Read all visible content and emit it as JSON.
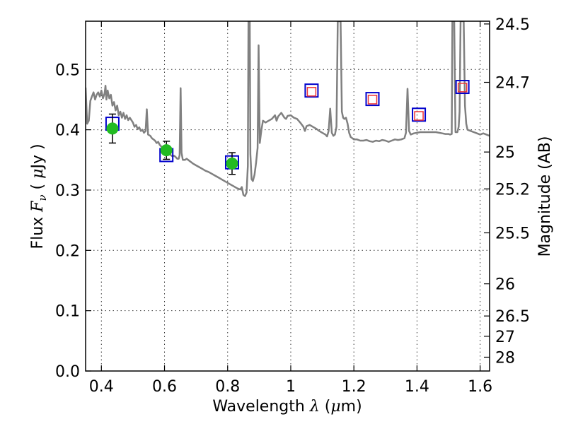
{
  "chart_data": {
    "type": "scatter",
    "title": "",
    "xlabel": {
      "prefix": "Wavelength  ",
      "symbol": "λ",
      "open": " (",
      "unit_symbol": "μ",
      "unit": "m)"
    },
    "ylabel": {
      "prefix": "Flux  ",
      "symbol": "F",
      "subscript": "ν",
      "unit_prefix": "  ( ",
      "unit_symbol": "μ",
      "unit": "Jy )"
    },
    "y2label": "Magnitude (AB)",
    "xlim": [
      0.35,
      1.63
    ],
    "ylim": [
      0.0,
      0.58
    ],
    "grid": true,
    "x_ticks": [
      {
        "value": 0.4,
        "label": "0.4"
      },
      {
        "value": 0.6,
        "label": "0.6"
      },
      {
        "value": 0.8,
        "label": "0.8"
      },
      {
        "value": 1.0,
        "label": "1"
      },
      {
        "value": 1.2,
        "label": "1.2"
      },
      {
        "value": 1.4,
        "label": "1.4"
      },
      {
        "value": 1.6,
        "label": "1.6"
      }
    ],
    "y_ticks": [
      {
        "value": 0.0,
        "label": "0.0"
      },
      {
        "value": 0.1,
        "label": "0.1"
      },
      {
        "value": 0.2,
        "label": "0.2"
      },
      {
        "value": 0.3,
        "label": "0.3"
      },
      {
        "value": 0.4,
        "label": "0.4"
      },
      {
        "value": 0.5,
        "label": "0.5"
      }
    ],
    "y2_ticks": [
      {
        "mag": 24.5,
        "label": "24.5"
      },
      {
        "mag": 24.7,
        "label": "24.7"
      },
      {
        "mag": 25,
        "label": "25"
      },
      {
        "mag": 25.2,
        "label": "25.2"
      },
      {
        "mag": 25.5,
        "label": "25.5"
      },
      {
        "mag": 26,
        "label": "26"
      },
      {
        "mag": 26.5,
        "label": "26.5"
      },
      {
        "mag": 27,
        "label": "27"
      },
      {
        "mag": 28,
        "label": "28"
      }
    ],
    "model_spectrum": {
      "color": "#808080",
      "points": [
        [
          0.35,
          0.47
        ],
        [
          0.355,
          0.41
        ],
        [
          0.36,
          0.415
        ],
        [
          0.365,
          0.448
        ],
        [
          0.37,
          0.455
        ],
        [
          0.375,
          0.462
        ],
        [
          0.38,
          0.45
        ],
        [
          0.385,
          0.458
        ],
        [
          0.39,
          0.462
        ],
        [
          0.395,
          0.455
        ],
        [
          0.4,
          0.465
        ],
        [
          0.405,
          0.452
        ],
        [
          0.41,
          0.46
        ],
        [
          0.413,
          0.473
        ],
        [
          0.416,
          0.45
        ],
        [
          0.42,
          0.465
        ],
        [
          0.425,
          0.452
        ],
        [
          0.43,
          0.458
        ],
        [
          0.435,
          0.44
        ],
        [
          0.44,
          0.446
        ],
        [
          0.445,
          0.432
        ],
        [
          0.45,
          0.44
        ],
        [
          0.455,
          0.424
        ],
        [
          0.46,
          0.43
        ],
        [
          0.465,
          0.42
        ],
        [
          0.47,
          0.428
        ],
        [
          0.475,
          0.418
        ],
        [
          0.48,
          0.424
        ],
        [
          0.485,
          0.416
        ],
        [
          0.49,
          0.42
        ],
        [
          0.5,
          0.412
        ],
        [
          0.505,
          0.405
        ],
        [
          0.51,
          0.408
        ],
        [
          0.515,
          0.401
        ],
        [
          0.52,
          0.404
        ],
        [
          0.525,
          0.398
        ],
        [
          0.53,
          0.4
        ],
        [
          0.535,
          0.395
        ],
        [
          0.54,
          0.398
        ],
        [
          0.544,
          0.434
        ],
        [
          0.548,
          0.392
        ],
        [
          0.555,
          0.39
        ],
        [
          0.56,
          0.386
        ],
        [
          0.565,
          0.384
        ],
        [
          0.57,
          0.382
        ],
        [
          0.575,
          0.378
        ],
        [
          0.58,
          0.38
        ],
        [
          0.585,
          0.375
        ],
        [
          0.59,
          0.372
        ],
        [
          0.595,
          0.37
        ],
        [
          0.6,
          0.367
        ],
        [
          0.605,
          0.365
        ],
        [
          0.61,
          0.362
        ],
        [
          0.615,
          0.36
        ],
        [
          0.62,
          0.358
        ],
        [
          0.625,
          0.356
        ],
        [
          0.63,
          0.357
        ],
        [
          0.635,
          0.355
        ],
        [
          0.64,
          0.352
        ],
        [
          0.645,
          0.352
        ],
        [
          0.648,
          0.358
        ],
        [
          0.651,
          0.469
        ],
        [
          0.654,
          0.362
        ],
        [
          0.658,
          0.35
        ],
        [
          0.665,
          0.35
        ],
        [
          0.67,
          0.352
        ],
        [
          0.68,
          0.348
        ],
        [
          0.69,
          0.344
        ],
        [
          0.7,
          0.341
        ],
        [
          0.71,
          0.338
        ],
        [
          0.72,
          0.335
        ],
        [
          0.73,
          0.332
        ],
        [
          0.74,
          0.33
        ],
        [
          0.75,
          0.327
        ],
        [
          0.76,
          0.324
        ],
        [
          0.77,
          0.321
        ],
        [
          0.78,
          0.318
        ],
        [
          0.79,
          0.315
        ],
        [
          0.8,
          0.312
        ],
        [
          0.81,
          0.309
        ],
        [
          0.82,
          0.306
        ],
        [
          0.83,
          0.303
        ],
        [
          0.84,
          0.301
        ],
        [
          0.845,
          0.305
        ],
        [
          0.85,
          0.292
        ],
        [
          0.855,
          0.29
        ],
        [
          0.86,
          0.296
        ],
        [
          0.864,
          0.34
        ],
        [
          0.866,
          0.58
        ],
        [
          0.87,
          0.58
        ],
        [
          0.872,
          0.36
        ],
        [
          0.876,
          0.318
        ],
        [
          0.88,
          0.315
        ],
        [
          0.885,
          0.325
        ],
        [
          0.89,
          0.345
        ],
        [
          0.895,
          0.37
        ],
        [
          0.898,
          0.54
        ],
        [
          0.902,
          0.378
        ],
        [
          0.907,
          0.4
        ],
        [
          0.912,
          0.415
        ],
        [
          0.92,
          0.412
        ],
        [
          0.93,
          0.415
        ],
        [
          0.94,
          0.418
        ],
        [
          0.95,
          0.424
        ],
        [
          0.955,
          0.415
        ],
        [
          0.96,
          0.422
        ],
        [
          0.97,
          0.428
        ],
        [
          0.98,
          0.42
        ],
        [
          0.985,
          0.418
        ],
        [
          0.99,
          0.423
        ],
        [
          1.0,
          0.424
        ],
        [
          1.01,
          0.42
        ],
        [
          1.02,
          0.418
        ],
        [
          1.03,
          0.412
        ],
        [
          1.04,
          0.405
        ],
        [
          1.045,
          0.398
        ],
        [
          1.05,
          0.406
        ],
        [
          1.06,
          0.408
        ],
        [
          1.07,
          0.405
        ],
        [
          1.08,
          0.402
        ],
        [
          1.09,
          0.398
        ],
        [
          1.1,
          0.395
        ],
        [
          1.11,
          0.392
        ],
        [
          1.115,
          0.389
        ],
        [
          1.12,
          0.398
        ],
        [
          1.125,
          0.435
        ],
        [
          1.13,
          0.395
        ],
        [
          1.135,
          0.39
        ],
        [
          1.14,
          0.392
        ],
        [
          1.145,
          0.405
        ],
        [
          1.149,
          0.58
        ],
        [
          1.158,
          0.58
        ],
        [
          1.162,
          0.43
        ],
        [
          1.166,
          0.42
        ],
        [
          1.17,
          0.418
        ],
        [
          1.175,
          0.42
        ],
        [
          1.18,
          0.41
        ],
        [
          1.185,
          0.395
        ],
        [
          1.19,
          0.388
        ],
        [
          1.2,
          0.384
        ],
        [
          1.21,
          0.384
        ],
        [
          1.22,
          0.382
        ],
        [
          1.23,
          0.382
        ],
        [
          1.24,
          0.383
        ],
        [
          1.25,
          0.381
        ],
        [
          1.26,
          0.38
        ],
        [
          1.27,
          0.382
        ],
        [
          1.28,
          0.381
        ],
        [
          1.29,
          0.383
        ],
        [
          1.3,
          0.382
        ],
        [
          1.31,
          0.38
        ],
        [
          1.32,
          0.382
        ],
        [
          1.33,
          0.384
        ],
        [
          1.34,
          0.383
        ],
        [
          1.35,
          0.384
        ],
        [
          1.36,
          0.386
        ],
        [
          1.365,
          0.395
        ],
        [
          1.37,
          0.468
        ],
        [
          1.375,
          0.398
        ],
        [
          1.38,
          0.392
        ],
        [
          1.39,
          0.394
        ],
        [
          1.4,
          0.395
        ],
        [
          1.41,
          0.396
        ],
        [
          1.42,
          0.396
        ],
        [
          1.43,
          0.396
        ],
        [
          1.44,
          0.396
        ],
        [
          1.45,
          0.396
        ],
        [
          1.46,
          0.396
        ],
        [
          1.47,
          0.395
        ],
        [
          1.48,
          0.394
        ],
        [
          1.49,
          0.393
        ],
        [
          1.5,
          0.393
        ],
        [
          1.505,
          0.392
        ],
        [
          1.51,
          0.393
        ],
        [
          1.512,
          0.58
        ],
        [
          1.518,
          0.58
        ],
        [
          1.522,
          0.396
        ],
        [
          1.528,
          0.396
        ],
        [
          1.532,
          0.405
        ],
        [
          1.535,
          0.43
        ],
        [
          1.538,
          0.58
        ],
        [
          1.548,
          0.58
        ],
        [
          1.552,
          0.44
        ],
        [
          1.556,
          0.41
        ],
        [
          1.56,
          0.4
        ],
        [
          1.57,
          0.398
        ],
        [
          1.58,
          0.396
        ],
        [
          1.59,
          0.394
        ],
        [
          1.6,
          0.392
        ],
        [
          1.61,
          0.394
        ],
        [
          1.62,
          0.392
        ],
        [
          1.63,
          0.39
        ]
      ]
    },
    "model_photometry": {
      "marker": "square",
      "color": "#0000cc",
      "points": [
        {
          "x": 0.435,
          "y": 0.41
        },
        {
          "x": 0.606,
          "y": 0.358
        },
        {
          "x": 0.814,
          "y": 0.346
        },
        {
          "x": 1.066,
          "y": 0.465
        },
        {
          "x": 1.259,
          "y": 0.451
        },
        {
          "x": 1.406,
          "y": 0.425
        },
        {
          "x": 1.544,
          "y": 0.471
        }
      ]
    },
    "observed_photometry": {
      "marker": "circle",
      "color": "#22bb22",
      "points": [
        {
          "x": 0.435,
          "y": 0.402,
          "err": 0.024
        },
        {
          "x": 0.606,
          "y": 0.366,
          "err": 0.015
        },
        {
          "x": 0.814,
          "y": 0.344,
          "err": 0.018
        }
      ]
    },
    "upper_limits": {
      "marker": "square",
      "color": "#ee3333",
      "points": [
        {
          "x": 1.066,
          "y": 0.463
        },
        {
          "x": 1.259,
          "y": 0.45
        },
        {
          "x": 1.406,
          "y": 0.423
        },
        {
          "x": 1.544,
          "y": 0.47
        }
      ]
    }
  }
}
